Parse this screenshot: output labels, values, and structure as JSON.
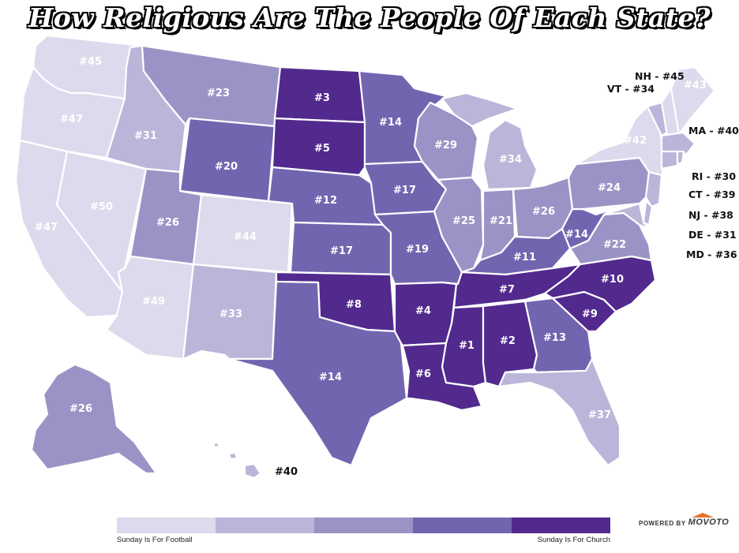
{
  "title": "How Religious Are The People Of Each State?",
  "colors": {
    "level1": "#dcdaec",
    "level2": "#b9b6d9",
    "level3": "#9a94c6",
    "level4": "#7265b0",
    "level5": "#522a8e"
  },
  "states": {
    "WA": {
      "rank": "#45",
      "level": 1
    },
    "OR": {
      "rank": "#47",
      "level": 1
    },
    "CA": {
      "rank": "#47",
      "level": 1
    },
    "NV": {
      "rank": "#50",
      "level": 1
    },
    "ID": {
      "rank": "#31",
      "level": 2
    },
    "MT": {
      "rank": "#23",
      "level": 3
    },
    "WY": {
      "rank": "#20",
      "level": 4
    },
    "UT": {
      "rank": "#26",
      "level": 3
    },
    "CO": {
      "rank": "#44",
      "level": 1
    },
    "AZ": {
      "rank": "#49",
      "level": 1
    },
    "NM": {
      "rank": "#33",
      "level": 2
    },
    "ND": {
      "rank": "#3",
      "level": 5
    },
    "SD": {
      "rank": "#5",
      "level": 5
    },
    "NE": {
      "rank": "#12",
      "level": 4
    },
    "KS": {
      "rank": "#17",
      "level": 4
    },
    "OK": {
      "rank": "#8",
      "level": 5
    },
    "TX": {
      "rank": "#14",
      "level": 4
    },
    "MN": {
      "rank": "#14",
      "level": 4
    },
    "IA": {
      "rank": "#17",
      "level": 4
    },
    "MO": {
      "rank": "#19",
      "level": 4
    },
    "AR": {
      "rank": "#4",
      "level": 5
    },
    "LA": {
      "rank": "#6",
      "level": 5
    },
    "WI": {
      "rank": "#29",
      "level": 3
    },
    "IL": {
      "rank": "#25",
      "level": 3
    },
    "MI": {
      "rank": "#34",
      "level": 2
    },
    "IN": {
      "rank": "#21",
      "level": 3
    },
    "OH": {
      "rank": "#26",
      "level": 3
    },
    "KY": {
      "rank": "#11",
      "level": 4
    },
    "TN": {
      "rank": "#7",
      "level": 5
    },
    "MS": {
      "rank": "#1",
      "level": 5
    },
    "AL": {
      "rank": "#2",
      "level": 5
    },
    "GA": {
      "rank": "#13",
      "level": 4
    },
    "FL": {
      "rank": "#37",
      "level": 2
    },
    "SC": {
      "rank": "#9",
      "level": 5
    },
    "NC": {
      "rank": "#10",
      "level": 5
    },
    "VA": {
      "rank": "#22",
      "level": 3
    },
    "WV": {
      "rank": "#14",
      "level": 4
    },
    "PA": {
      "rank": "#24",
      "level": 3
    },
    "NY": {
      "rank": "#42",
      "level": 1
    },
    "ME": {
      "rank": "#43",
      "level": 1
    },
    "AK": {
      "rank": "#26",
      "level": 3
    },
    "HI": {
      "rank": "#40",
      "level": 2
    },
    "VT": {
      "level": 2
    },
    "NH": {
      "level": 1
    },
    "MA": {
      "level": 2
    },
    "RI": {
      "level": 2
    },
    "CT": {
      "level": 2
    },
    "NJ": {
      "level": 2
    },
    "DE": {
      "level": 2
    },
    "MD": {
      "level": 2
    }
  },
  "callouts": {
    "nh": "NH - #45",
    "vt": "VT - #34",
    "ma": "MA - #40",
    "ri": "RI - #30",
    "ct": "CT - #39",
    "nj": "NJ - #38",
    "de": "DE - #31",
    "md": "MD - #36"
  },
  "legend": {
    "left_label": "Sunday Is For Football",
    "right_label": "Sunday Is For Church",
    "levels": [
      "level1",
      "level2",
      "level3",
      "level4",
      "level5"
    ]
  },
  "brand": {
    "powered_by": "POWERED BY",
    "name": "MOVOTO"
  }
}
